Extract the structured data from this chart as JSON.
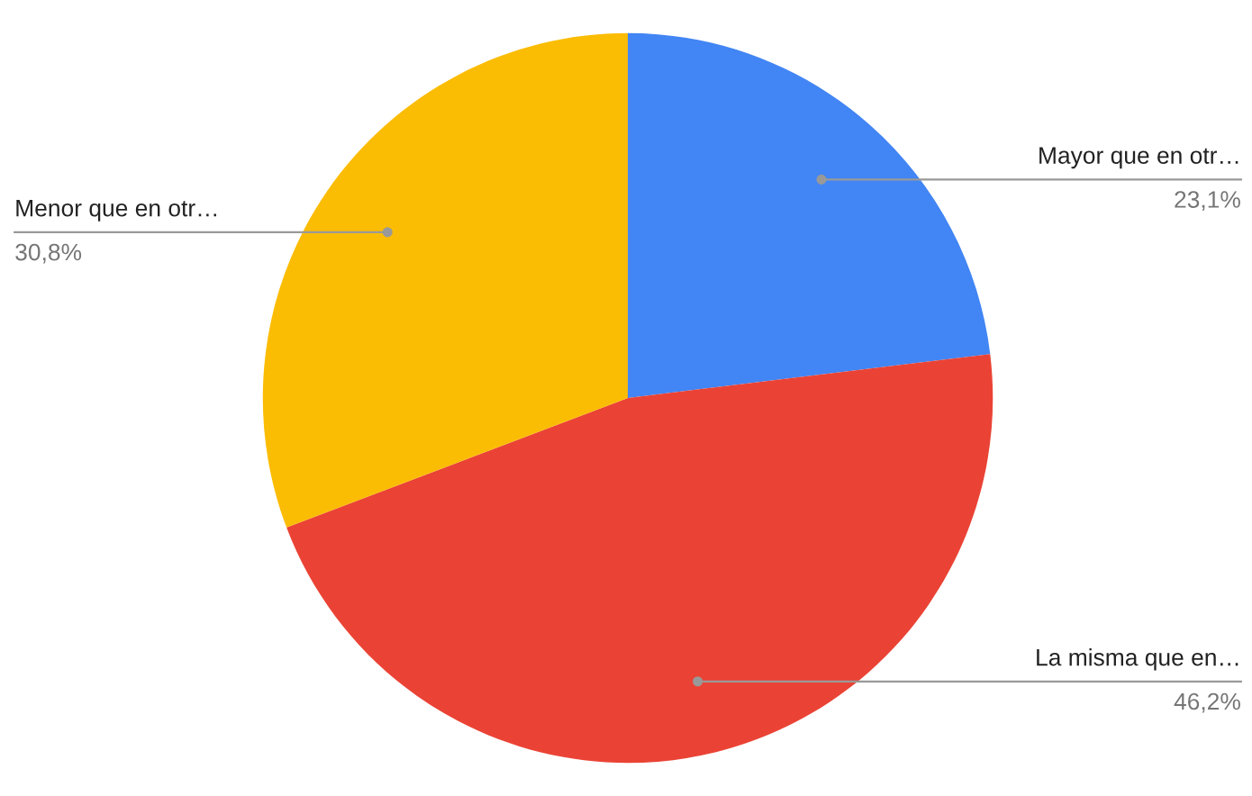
{
  "chart_data": {
    "type": "pie",
    "categories": [
      "Mayor que en otr…",
      "La misma que en…",
      "Menor que en otr…"
    ],
    "values": [
      23.1,
      46.2,
      30.8
    ],
    "colors": [
      "#4285f4",
      "#ea4335",
      "#fbbc04"
    ],
    "value_labels": [
      "23,1%",
      "46,2%",
      "30,8%"
    ],
    "legend": false
  }
}
